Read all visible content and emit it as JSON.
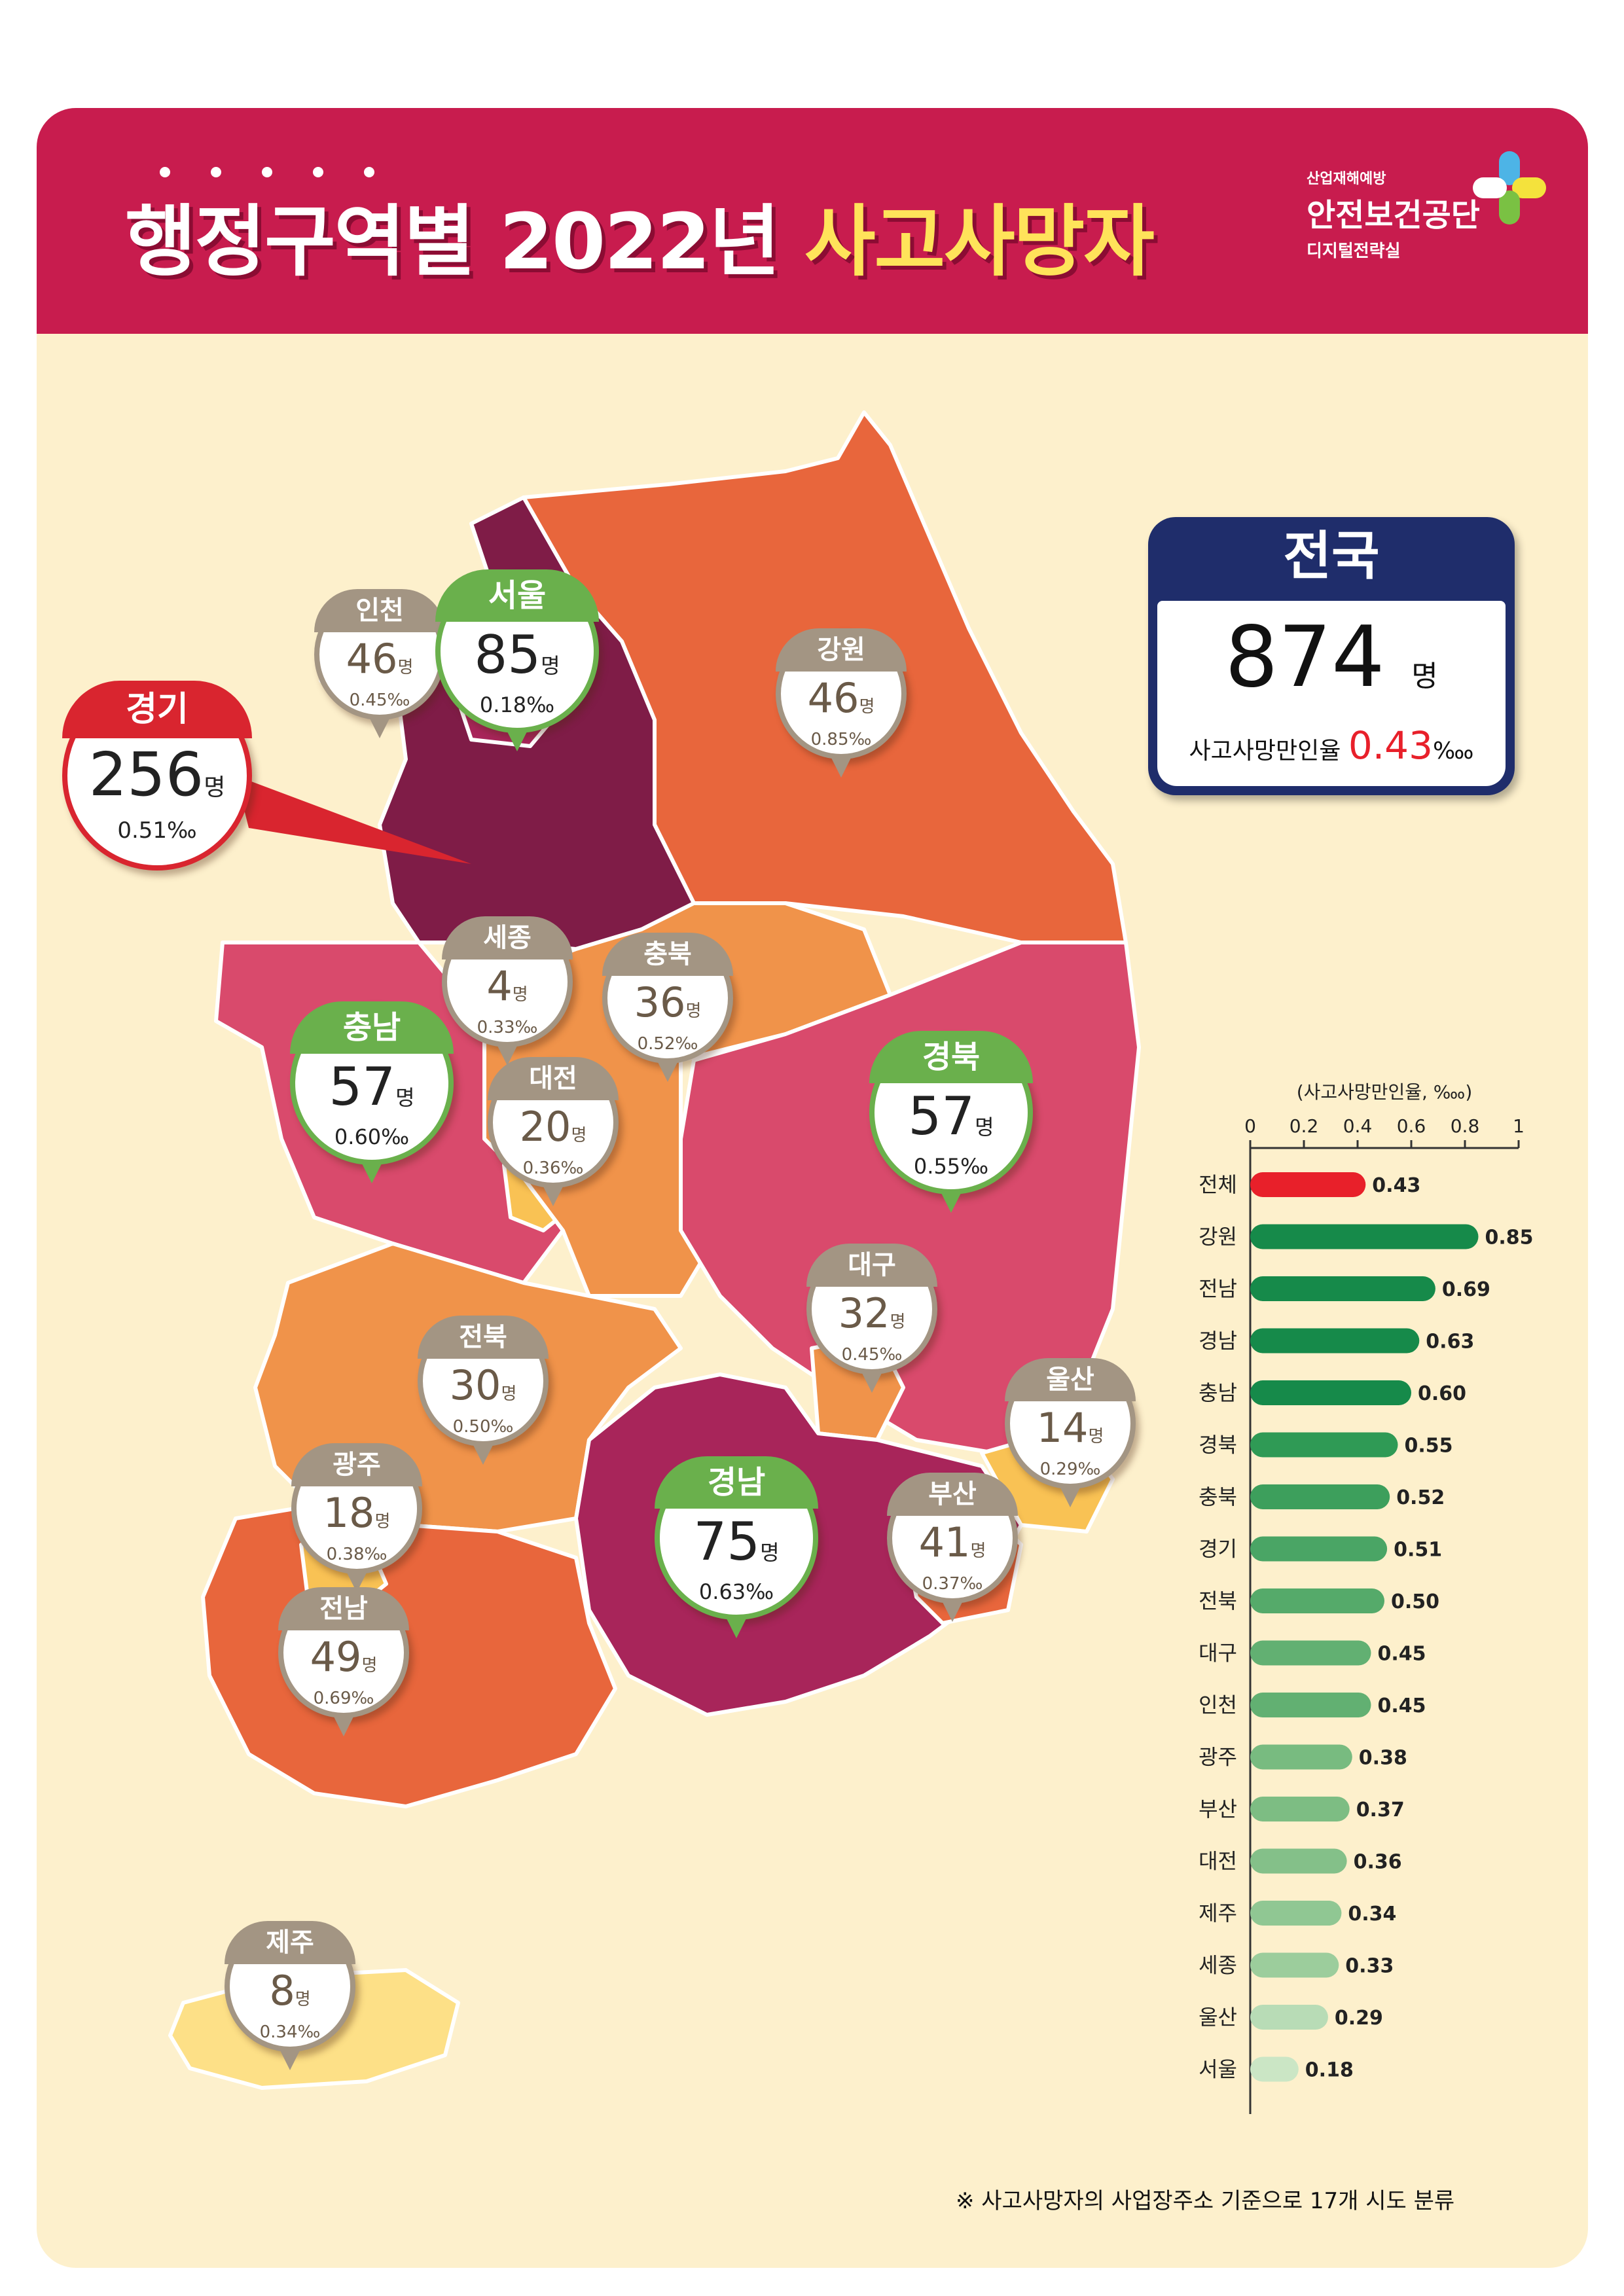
{
  "header": {
    "title_prefix": "행정구역별 2022년",
    "title_highlight": "사고사망자",
    "logo": {
      "line1": "산업재해예방",
      "line2": "안전보건공단",
      "line3": "디지털전략실"
    }
  },
  "unit_people": "명",
  "permille": "‰",
  "national": {
    "label": "전국",
    "count": "874",
    "unit": "명",
    "rate_label": "사고사망만인율",
    "rate": "0.43",
    "rate_unit": "‱"
  },
  "regions": [
    {
      "name": "경기",
      "count": "256",
      "rate": "0.51‰"
    },
    {
      "name": "인천",
      "count": "46",
      "rate": "0.45‰"
    },
    {
      "name": "서울",
      "count": "85",
      "rate": "0.18‰"
    },
    {
      "name": "강원",
      "count": "46",
      "rate": "0.85‰"
    },
    {
      "name": "세종",
      "count": "4",
      "rate": "0.33‰"
    },
    {
      "name": "충북",
      "count": "36",
      "rate": "0.52‰"
    },
    {
      "name": "충남",
      "count": "57",
      "rate": "0.60‰"
    },
    {
      "name": "대전",
      "count": "20",
      "rate": "0.36‰"
    },
    {
      "name": "경북",
      "count": "57",
      "rate": "0.55‰"
    },
    {
      "name": "대구",
      "count": "32",
      "rate": "0.45‰"
    },
    {
      "name": "전북",
      "count": "30",
      "rate": "0.50‰"
    },
    {
      "name": "울산",
      "count": "14",
      "rate": "0.29‰"
    },
    {
      "name": "광주",
      "count": "18",
      "rate": "0.38‰"
    },
    {
      "name": "경남",
      "count": "75",
      "rate": "0.63‰"
    },
    {
      "name": "부산",
      "count": "41",
      "rate": "0.37‰"
    },
    {
      "name": "전남",
      "count": "49",
      "rate": "0.69‰"
    },
    {
      "name": "제주",
      "count": "8",
      "rate": "0.34‰"
    }
  ],
  "chart_data": {
    "type": "bar",
    "orientation": "horizontal",
    "ylabel": "(사고사망만인율, ‱)",
    "xlim": [
      0,
      1
    ],
    "ticks": [
      "0",
      "0.2",
      "0.4",
      "0.6",
      "0.8",
      "1"
    ],
    "categories": [
      "전체",
      "강원",
      "전남",
      "경남",
      "충남",
      "경북",
      "충북",
      "경기",
      "전북",
      "대구",
      "인천",
      "광주",
      "부산",
      "대전",
      "제주",
      "세종",
      "울산",
      "서울"
    ],
    "values": [
      0.43,
      0.85,
      0.69,
      0.63,
      0.6,
      0.55,
      0.52,
      0.51,
      0.5,
      0.45,
      0.45,
      0.38,
      0.37,
      0.36,
      0.34,
      0.33,
      0.29,
      0.18
    ],
    "labels": [
      "0.43",
      "0.85",
      "0.69",
      "0.63",
      "0.60",
      "0.55",
      "0.52",
      "0.51",
      "0.50",
      "0.45",
      "0.45",
      "0.38",
      "0.37",
      "0.36",
      "0.34",
      "0.33",
      "0.29",
      "0.18"
    ],
    "colors": [
      "#e8202a",
      "#168a4a",
      "#168a4a",
      "#168a4a",
      "#168a4a",
      "#2f9a55",
      "#3d9f5c",
      "#4aa565",
      "#55aa6a",
      "#62b072",
      "#62b072",
      "#78bb80",
      "#7dbd83",
      "#84c089",
      "#90c793",
      "#9ccd9c",
      "#b8dcb6",
      "#cbe6c5"
    ]
  },
  "footnote": "※ 사고사망자의 사업장주소 기준으로 17개 시도 분류"
}
